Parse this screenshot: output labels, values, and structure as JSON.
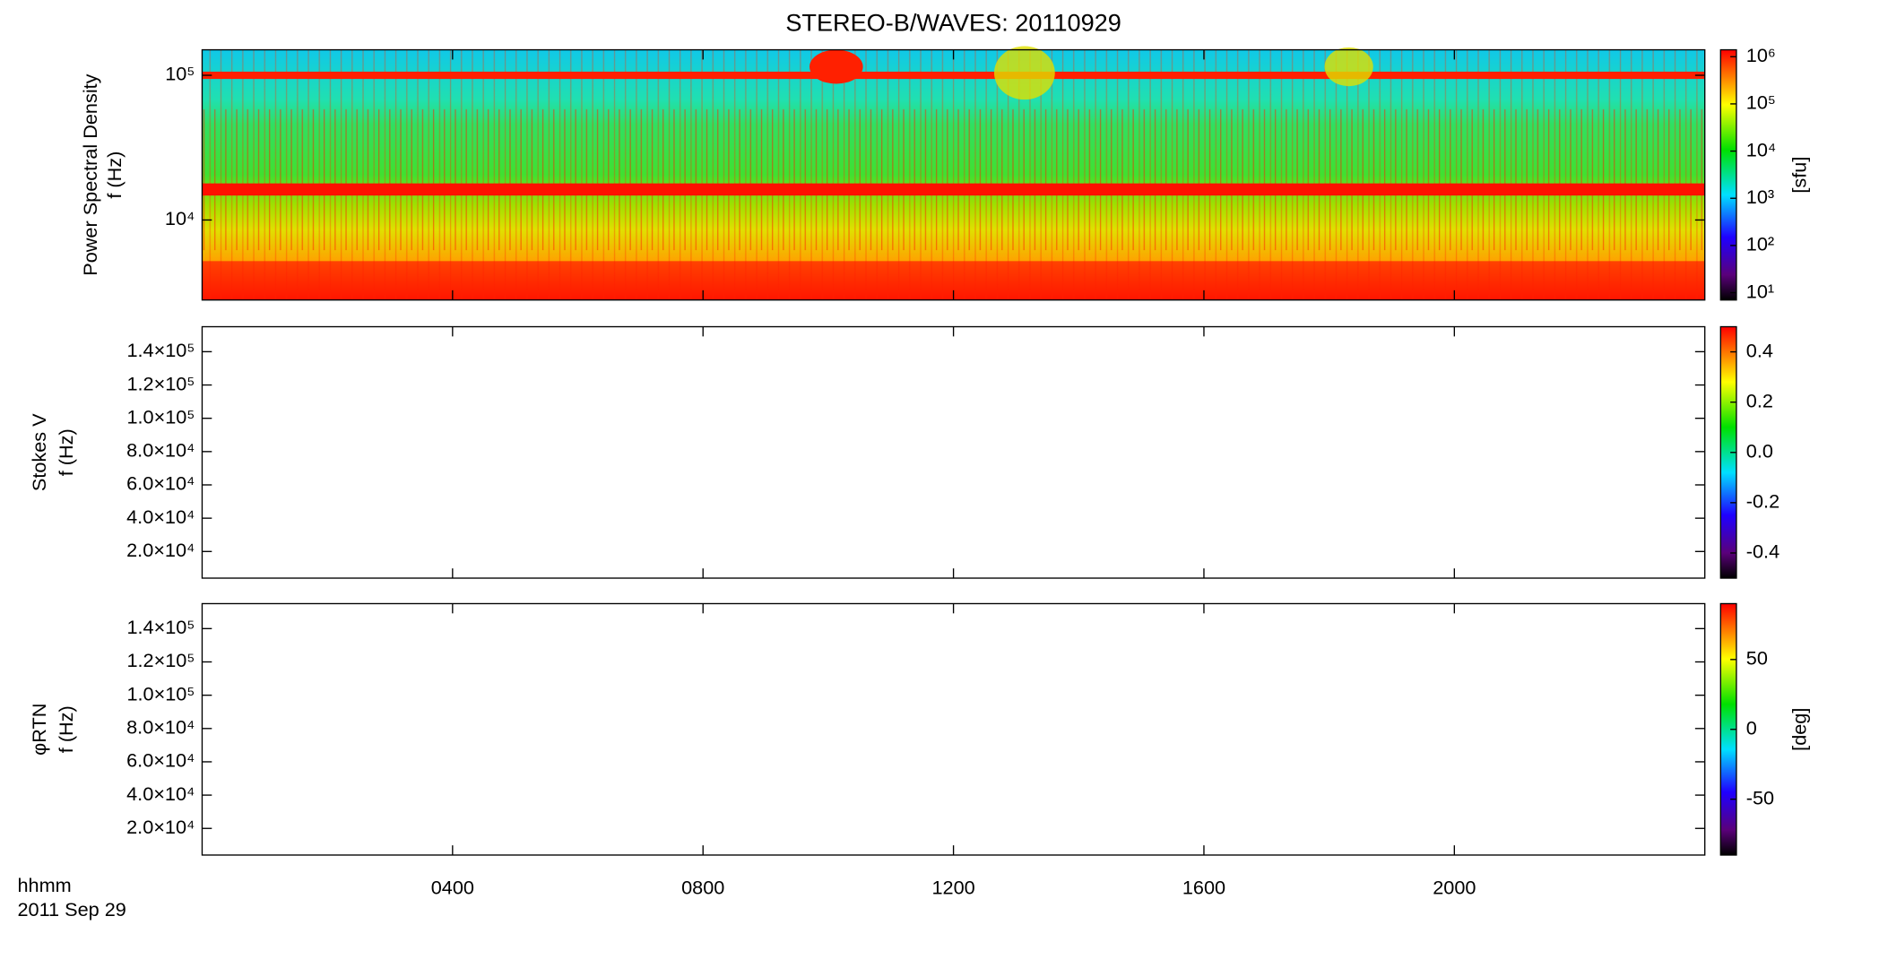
{
  "chart_data": [
    {
      "type": "heatmap",
      "title": "STEREO-B/WAVES: 20110929",
      "ylabel": [
        "Power Spectral Density",
        "f (Hz)"
      ],
      "ylog": true,
      "ylim": [
        2800,
        150000
      ],
      "yticks": [
        {
          "value": 10000,
          "label": "10⁴"
        },
        {
          "value": 100000,
          "label": "10⁵"
        }
      ],
      "colorbar_label": "[sfu]",
      "zlog": true,
      "zlim": [
        7,
        1400000
      ],
      "zticks": [
        {
          "value": 10,
          "label": "10¹"
        },
        {
          "value": 100,
          "label": "10²"
        },
        {
          "value": 1000,
          "label": "10³"
        },
        {
          "value": 10000,
          "label": "10⁴"
        },
        {
          "value": 100000,
          "label": "10⁵"
        },
        {
          "value": 1000000,
          "label": "10⁶"
        }
      ]
    },
    {
      "type": "heatmap",
      "ylabel": [
        "Stokes V",
        "f (Hz)"
      ],
      "ylog": false,
      "ylim": [
        4000,
        155000
      ],
      "yticks": [
        {
          "value": 20000,
          "label": "2.0×10⁴"
        },
        {
          "value": 40000,
          "label": "4.0×10⁴"
        },
        {
          "value": 60000,
          "label": "6.0×10⁴"
        },
        {
          "value": 80000,
          "label": "8.0×10⁴"
        },
        {
          "value": 100000,
          "label": "1.0×10⁵"
        },
        {
          "value": 120000,
          "label": "1.2×10⁵"
        },
        {
          "value": 140000,
          "label": "1.4×10⁵"
        }
      ],
      "zlog": false,
      "zlim": [
        -0.5,
        0.5
      ],
      "zticks": [
        -0.4,
        -0.2,
        {
          "value": 0,
          "label": "0.0"
        },
        0.2,
        0.4
      ]
    },
    {
      "type": "heatmap",
      "ylabel": [
        "φRTN",
        "f (Hz)"
      ],
      "ylog": false,
      "ylim": [
        4000,
        155000
      ],
      "yticks": [
        {
          "value": 20000,
          "label": "2.0×10⁴"
        },
        {
          "value": 40000,
          "label": "4.0×10⁴"
        },
        {
          "value": 60000,
          "label": "6.0×10⁴"
        },
        {
          "value": 80000,
          "label": "8.0×10⁴"
        },
        {
          "value": 100000,
          "label": "1.0×10⁵"
        },
        {
          "value": 120000,
          "label": "1.2×10⁵"
        },
        {
          "value": 140000,
          "label": "1.4×10⁵"
        }
      ],
      "colorbar_label": "[deg]",
      "zlog": false,
      "zlim": [
        -90,
        90
      ],
      "zticks": [
        -50,
        0,
        50
      ],
      "xlabel": [
        "hhmm",
        "2011 Sep 29"
      ],
      "xlim": [
        0,
        24
      ],
      "xticks": [
        {
          "value": 4,
          "label": "0400"
        },
        {
          "value": 8,
          "label": "0800"
        },
        {
          "value": 12,
          "label": "1200"
        },
        {
          "value": 16,
          "label": "1600"
        },
        {
          "value": 20,
          "label": "2000"
        }
      ]
    }
  ]
}
